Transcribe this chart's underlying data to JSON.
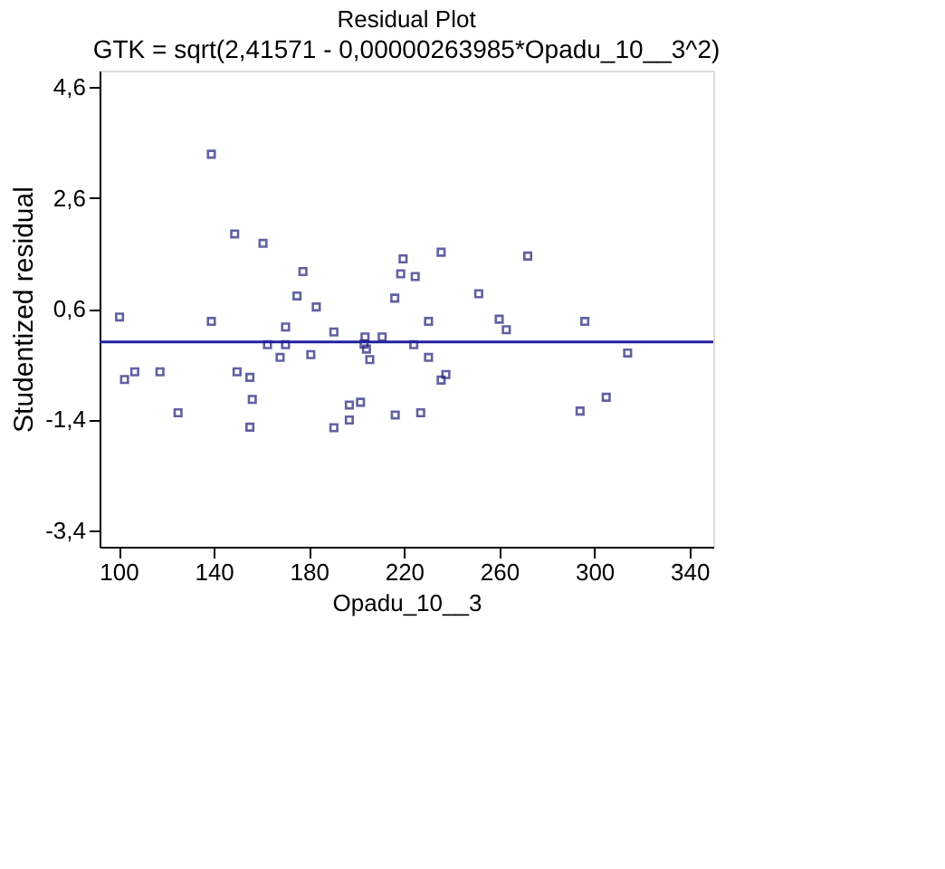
{
  "chart_data": {
    "type": "scatter",
    "title": "Residual Plot",
    "subtitle": "GTK = sqrt(2,41571 - 0,00000263985*Opadu_10__3^2)",
    "xlabel": "Opadu_10__3",
    "ylabel": "Studentized residual",
    "x": [
      139,
      148.8,
      160.7,
      177.5,
      175,
      219.6,
      218.6,
      224.7,
      235.6,
      216.1,
      251.4,
      183.1,
      260,
      263,
      230.3,
      170.2,
      190.5,
      203.6,
      210.8,
      170.2,
      224.1,
      203.2,
      204.2,
      167.9,
      180.8,
      205.6,
      230.3,
      237.6,
      235.6,
      197,
      201.7,
      197,
      190.5,
      216.3,
      227,
      100.4,
      139,
      162.6,
      102.5,
      106.8,
      117.4,
      149.8,
      155.2,
      156.2,
      125,
      155.2,
      272,
      296,
      294,
      305,
      314
    ],
    "values": [
      3.39,
      1.95,
      1.78,
      1.27,
      0.83,
      1.5,
      1.23,
      1.18,
      1.62,
      0.79,
      0.87,
      0.63,
      0.41,
      0.22,
      0.37,
      0.27,
      0.18,
      0.09,
      0.09,
      -0.05,
      -0.05,
      -0.04,
      -0.13,
      -0.28,
      -0.23,
      -0.32,
      -0.28,
      -0.59,
      -0.69,
      -1.14,
      -1.09,
      -1.41,
      -1.55,
      -1.32,
      -1.28,
      0.45,
      0.37,
      -0.05,
      -0.68,
      -0.54,
      -0.54,
      -0.54,
      -0.64,
      -1.04,
      -1.28,
      -1.54,
      1.55,
      0.37,
      -1.25,
      -1.0,
      -0.2
    ],
    "color": "#1f1f7a",
    "marker": "square",
    "xlim": [
      92,
      350
    ],
    "xticks": [
      100,
      140,
      180,
      220,
      260,
      300,
      340
    ],
    "ylim": [
      -3.7,
      4.9
    ],
    "yticks": [
      {
        "value": 4.6,
        "label": "4,6"
      },
      {
        "value": 2.6,
        "label": "2,6"
      },
      {
        "value": 0.6,
        "label": "0,6"
      },
      {
        "value": -1.4,
        "label": "-1,4"
      },
      {
        "value": -3.4,
        "label": "-3,4"
      }
    ],
    "ref_lines": [
      {
        "axis": "y",
        "value": 0,
        "color": "#2020a0"
      }
    ],
    "grid": false
  }
}
